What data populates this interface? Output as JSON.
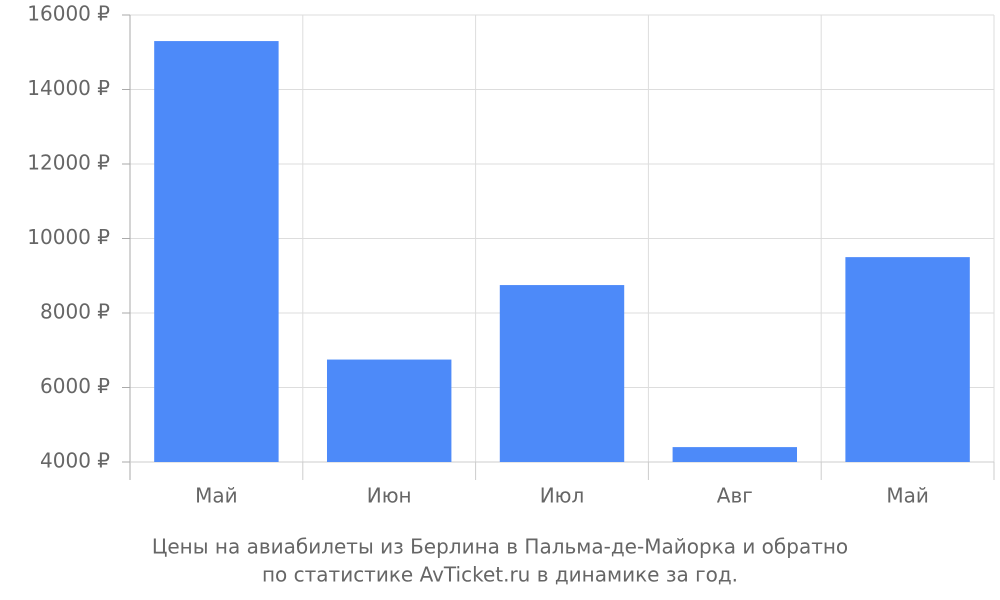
{
  "chart_data": {
    "type": "bar",
    "caption": [
      "Цены на авиабилеты из Берлина в Пальма-де-Майорка и обратно",
      "по статистике AvTicket.ru в динамике за год."
    ],
    "categories": [
      "Май",
      "Июн",
      "Июл",
      "Авг",
      "Май"
    ],
    "values": [
      15300,
      6750,
      8750,
      4400,
      9500
    ],
    "color": "#4d8af9",
    "ylim": [
      4000,
      16000
    ],
    "yticks": [
      {
        "value": 4000,
        "label": "4000 ₽"
      },
      {
        "value": 6000,
        "label": "6000 ₽"
      },
      {
        "value": 8000,
        "label": "8000 ₽"
      },
      {
        "value": 10000,
        "label": "10000 ₽"
      },
      {
        "value": 12000,
        "label": "12000 ₽"
      },
      {
        "value": 14000,
        "label": "14000 ₽"
      },
      {
        "value": 16000,
        "label": "16000 ₽"
      }
    ],
    "grid": true
  }
}
